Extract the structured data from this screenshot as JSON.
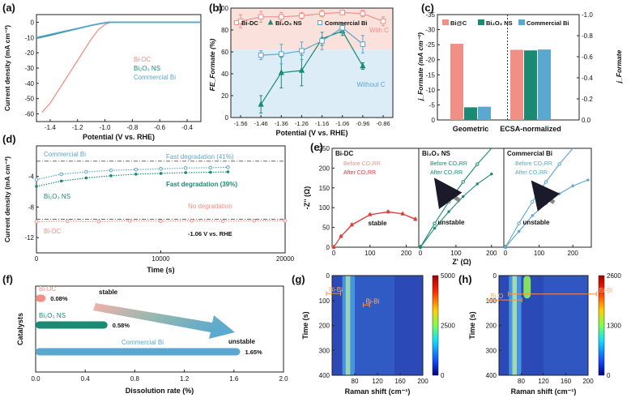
{
  "colors": {
    "bidc": "#f08f86",
    "bi2o3": "#1a8a73",
    "comm": "#5aa7cf",
    "navy": "#1a1a2a"
  },
  "chart_data": [
    {
      "panel": "(a)",
      "type": "line",
      "xlabel": "Potential (V vs. RHE)",
      "ylabel": "Current density (mA cm⁻²)",
      "xlim": [
        -1.5,
        -0.3
      ],
      "ylim": [
        -65,
        5
      ],
      "xticks": [
        -1.4,
        -1.2,
        -1.0,
        -0.8,
        -0.6,
        -0.4
      ],
      "xtick_labels": [
        "-1.4",
        "-1.2",
        "-1.0",
        "-0.8",
        "-0.6",
        "-0.4"
      ],
      "yticks": [
        0,
        -10,
        -20,
        -30,
        -40,
        -50,
        -60
      ],
      "ytick_labels": [
        "0",
        "-10",
        "-20",
        "-30",
        "-40",
        "-50",
        "-60"
      ],
      "legend": [
        "Bi-DC",
        "Bi₂O₃ NS",
        "Commercial Bi"
      ],
      "series": [
        {
          "name": "Bi-DC",
          "x": [
            -1.46,
            -1.4,
            -1.35,
            -1.3,
            -1.25,
            -1.2,
            -1.15,
            -1.1,
            -1.05,
            -1.0,
            -0.97,
            -0.95,
            -0.9,
            -0.3
          ],
          "y": [
            -59,
            -53,
            -46,
            -39,
            -32,
            -25,
            -18,
            -11,
            -5,
            -1.5,
            -0.3,
            0,
            0,
            0
          ]
        },
        {
          "name": "Bi₂O₃ NS",
          "x": [
            -1.5,
            -1.4,
            -1.3,
            -1.2,
            -1.1,
            -1.05,
            -1.0,
            -0.98,
            -0.95,
            -0.3
          ],
          "y": [
            -10.5,
            -8.5,
            -6.3,
            -4.2,
            -2.1,
            -1.2,
            -0.4,
            -0.1,
            0,
            0
          ]
        },
        {
          "name": "Commercial Bi",
          "x": [
            -1.5,
            -1.4,
            -1.3,
            -1.2,
            -1.1,
            -1.05,
            -1.0,
            -0.98,
            -0.95,
            -0.3
          ],
          "y": [
            -10,
            -8,
            -6,
            -4,
            -2,
            -1.1,
            -0.3,
            -0.1,
            0,
            0
          ]
        }
      ]
    },
    {
      "panel": "(b)",
      "type": "line",
      "xlabel": "Potential (V vs. RHE)",
      "ylabel": "FE_Formate (%)",
      "categories": [
        "-1.56",
        "-1.46",
        "-1.36",
        "-1.26",
        "-1.16",
        "-1.06",
        "-0.96",
        "-0.86"
      ],
      "ylim": [
        0,
        100
      ],
      "yticks": [
        0,
        20,
        40,
        60,
        80,
        100
      ],
      "ytick_labels": [
        "0",
        "20",
        "40",
        "60",
        "80",
        "100"
      ],
      "legend": [
        "Bi-DC",
        "Bi₂O₃ NS",
        "Commercial Bi"
      ],
      "annotations": [
        "With C",
        "Without C"
      ],
      "series": [
        {
          "name": "Bi-DC",
          "values": [
            88,
            92,
            92,
            93,
            95,
            96,
            95,
            88
          ],
          "errors": [
            6,
            5,
            4,
            3,
            3,
            2,
            3,
            4
          ]
        },
        {
          "name": "Bi₂O₃ NS",
          "values": [
            null,
            12,
            41,
            43,
            72,
            79,
            47,
            null
          ],
          "errors": [
            null,
            8,
            14,
            14,
            6,
            4,
            3,
            null
          ]
        },
        {
          "name": "Commercial Bi",
          "values": [
            null,
            57,
            58,
            61,
            70,
            82,
            67,
            null
          ],
          "errors": [
            null,
            4,
            9,
            8,
            8,
            4,
            8,
            null
          ]
        }
      ]
    },
    {
      "panel": "(c)",
      "type": "bar",
      "categories": [
        "Geometric",
        "ECSA-normalized"
      ],
      "ylabel_left": "j_Formate (mA cm⁻²)",
      "ylabel_right": "j_Formate",
      "ylim_left": [
        0,
        -35
      ],
      "yticks_left": [
        0,
        -5,
        -10,
        -15,
        -20,
        -25,
        -30,
        -35
      ],
      "ytick_labels_left": [
        "0",
        "-5",
        "-10",
        "-15",
        "-20",
        "-25",
        "-30",
        "-35"
      ],
      "ylim_right": [
        0,
        -1.0
      ],
      "yticks_right": [
        0,
        -0.2,
        -0.4,
        -0.6,
        -0.8,
        -1.0
      ],
      "ytick_labels_right": [
        "0.0",
        "-0.2",
        "-0.4",
        "-0.6",
        "-0.8",
        "-1.0"
      ],
      "legend": [
        "Bi@C",
        "Bi₂O₃ NS",
        "Commercial Bi"
      ],
      "series": [
        {
          "name": "Bi@C",
          "values": [
            -25.3,
            -23.3
          ]
        },
        {
          "name": "Bi₂O₃ NS",
          "values": [
            -4.2,
            -23.1
          ]
        },
        {
          "name": "Commercial Bi",
          "values": [
            -4.4,
            -23.4
          ]
        }
      ]
    },
    {
      "panel": "(d)",
      "type": "scatter",
      "xlabel": "Time (s)",
      "ylabel": "Current density (mA cm⁻²)",
      "xlim": [
        0,
        20000
      ],
      "ylim": [
        -14,
        0
      ],
      "xticks": [
        0,
        10000,
        20000
      ],
      "xtick_labels": [
        "0",
        "10000",
        "20000"
      ],
      "yticks": [
        -4,
        -8,
        -12
      ],
      "ytick_labels": [
        "-4",
        "-8",
        "-12"
      ],
      "annotations": [
        "Fast degradation (41%)",
        "Fast degradation (39%)",
        "No degradation",
        "-1.06 V vs. RHE"
      ],
      "series": [
        {
          "name": "Commercial Bi",
          "t": [
            0,
            2000,
            4000,
            6000,
            8000,
            10000,
            12000,
            14000,
            15400
          ],
          "y": [
            -4.4,
            -3.7,
            -3.4,
            -3.2,
            -3.1,
            -3.0,
            -2.9,
            -2.85,
            -2.8
          ]
        },
        {
          "name": "Bi₂O₃ NS",
          "t": [
            0,
            2000,
            4000,
            6000,
            8000,
            10000,
            12000,
            14000,
            15400
          ],
          "y": [
            -5.3,
            -4.6,
            -4.2,
            -3.9,
            -3.7,
            -3.6,
            -3.5,
            -3.45,
            -3.4
          ]
        },
        {
          "name": "Bi-DC",
          "t": [
            0,
            2500,
            5000,
            7500,
            10000,
            12500,
            15000,
            17500,
            20000
          ],
          "y": [
            -9.9,
            -9.85,
            -9.9,
            -9.8,
            -9.85,
            -9.8,
            -9.85,
            -9.8,
            -9.8
          ]
        }
      ],
      "reference_lines": [
        -2.0,
        -9.6
      ]
    },
    {
      "panel": "(e)",
      "type": "line",
      "xlabel": "Z' (Ω)",
      "ylabel": "-Z'' (Ω)",
      "ylim": [
        0,
        250
      ],
      "yticks": [
        0,
        50,
        100,
        150,
        200,
        250
      ],
      "ytick_labels": [
        "0",
        "50",
        "100",
        "150",
        "200",
        "250"
      ],
      "xtick_labels": [
        "0",
        "100",
        "200"
      ],
      "subpanels": [
        {
          "name": "Bi-DC",
          "note": "stable",
          "series": [
            {
              "name": "Before CO₂RR",
              "x": [
                0,
                20,
                50,
                100,
                150,
                190,
                225
              ],
              "y": [
                0,
                28,
                58,
                83,
                90,
                85,
                72
              ]
            },
            {
              "name": "After CO₂RR",
              "x": [
                0,
                20,
                50,
                100,
                150,
                190,
                225
              ],
              "y": [
                0,
                27,
                56,
                82,
                89,
                84,
                70
              ]
            }
          ]
        },
        {
          "name": "Bi₂O₃ NS",
          "note": "unstable",
          "series": [
            {
              "name": "Before CO₂RR",
              "x": [
                0,
                40,
                80,
                120,
                160,
                200
              ],
              "y": [
                0,
                60,
                115,
                165,
                210,
                255
              ]
            },
            {
              "name": "After CO₂RR",
              "x": [
                0,
                40,
                80,
                120,
                160,
                200
              ],
              "y": [
                0,
                48,
                90,
                128,
                160,
                185
              ]
            }
          ]
        },
        {
          "name": "Commercial Bi",
          "note": "unstable",
          "series": [
            {
              "name": "Before CO₂RR",
              "x": [
                0,
                40,
                80,
                120,
                160,
                200
              ],
              "y": [
                0,
                60,
                115,
                165,
                210,
                255
              ]
            },
            {
              "name": "After CO₂RR",
              "x": [
                0,
                40,
                80,
                120,
                160,
                200,
                245
              ],
              "y": [
                0,
                40,
                80,
                110,
                135,
                155,
                170
              ]
            }
          ]
        }
      ]
    },
    {
      "panel": "(f)",
      "type": "bar",
      "orientation": "horizontal",
      "xlabel": "Dissolution rate (%)",
      "ylabel": "Catalysts",
      "xlim": [
        0,
        2.0
      ],
      "xticks": [
        0.0,
        0.4,
        0.8,
        1.2,
        1.6,
        2.0
      ],
      "xtick_labels": [
        "0.0",
        "0.4",
        "0.8",
        "1.2",
        "1.6",
        "2.0"
      ],
      "categories": [
        "Bi-DC",
        "Bi₂O₃ NS",
        "Commercial Bi"
      ],
      "values": [
        0.08,
        0.58,
        1.65
      ],
      "value_labels": [
        "0.08%",
        "0.58%",
        "1.65%"
      ],
      "annotations": [
        "stable",
        "unstable"
      ]
    },
    {
      "panel": "(g)",
      "type": "heatmap",
      "xlabel": "Raman shift (cm⁻¹)",
      "ylabel": "Time (s)",
      "xlim": [
        40,
        200
      ],
      "xtick_labels": [
        "80",
        "120",
        "160",
        "200"
      ],
      "ylim": [
        0,
        400
      ],
      "ytick_labels": [
        "0",
        "100",
        "200",
        "300",
        "400"
      ],
      "colorbar_labels": [
        "5000",
        "2500",
        "0"
      ],
      "peaks": [
        "Bi-Bi",
        "Bi-Bi"
      ]
    },
    {
      "panel": "(h)",
      "type": "heatmap",
      "xlabel": "Raman shift (cm⁻¹)",
      "ylabel": "Time (s)",
      "xlim": [
        40,
        200
      ],
      "xtick_labels": [
        "80",
        "120",
        "160",
        "200"
      ],
      "ylim": [
        0,
        400
      ],
      "ytick_labels": [
        "0",
        "100",
        "200",
        "300",
        "400"
      ],
      "colorbar_labels": [
        "2600",
        "1300",
        "0"
      ],
      "peaks": [
        "Bi-O",
        "Bi-Bi"
      ]
    }
  ]
}
